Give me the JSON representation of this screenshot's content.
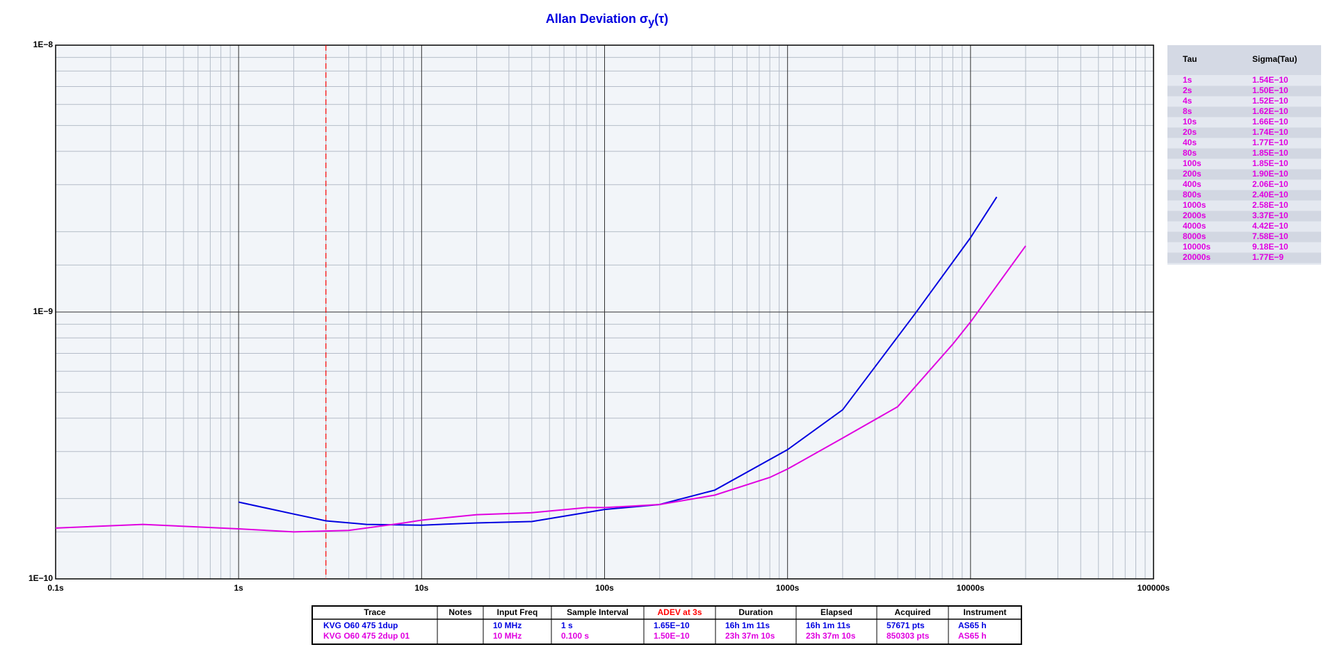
{
  "chart_data": {
    "type": "line",
    "title": "Allan Deviation σ",
    "title_sub": "y",
    "title_end": "(τ)",
    "log_x": true,
    "log_y": true,
    "grid": true,
    "xlim": [
      0.1,
      100000
    ],
    "ylim": [
      1e-10,
      1e-08
    ],
    "xticks": [
      {
        "value": 0.1,
        "label": "0.1s"
      },
      {
        "value": 1,
        "label": "1s"
      },
      {
        "value": 10,
        "label": "10s"
      },
      {
        "value": 100,
        "label": "100s"
      },
      {
        "value": 1000,
        "label": "1000s"
      },
      {
        "value": 10000,
        "label": "10000s"
      },
      {
        "value": 100000,
        "label": "100000s"
      }
    ],
    "yticks": [
      {
        "value": 1e-10,
        "label": "1E−10"
      },
      {
        "value": 1e-09,
        "label": "1E−9"
      },
      {
        "value": 1e-08,
        "label": "1E−8"
      }
    ],
    "marker_x": 3,
    "marker_color": "#ff0000",
    "series": [
      {
        "name": "KVG O60 475 1dup",
        "color": "#0000e0",
        "x": [
          1,
          2,
          3,
          5,
          10,
          20,
          40,
          100,
          200,
          400,
          1000,
          2000,
          5000,
          10000,
          13900
        ],
        "values": [
          1.94e-10,
          1.75e-10,
          1.65e-10,
          1.6e-10,
          1.59e-10,
          1.62e-10,
          1.64e-10,
          1.82e-10,
          1.9e-10,
          2.15e-10,
          3.05e-10,
          4.3e-10,
          9.9e-10,
          1.9e-09,
          2.7e-09
        ]
      },
      {
        "name": "KVG O60 475 2dup 01",
        "color": "#e000e0",
        "x": [
          0.1,
          0.3,
          1,
          2,
          4,
          8,
          10,
          20,
          40,
          80,
          100,
          200,
          400,
          800,
          1000,
          2000,
          4000,
          8000,
          10000,
          20000
        ],
        "values": [
          1.55e-10,
          1.6e-10,
          1.54e-10,
          1.5e-10,
          1.52e-10,
          1.62e-10,
          1.66e-10,
          1.74e-10,
          1.77e-10,
          1.85e-10,
          1.85e-10,
          1.9e-10,
          2.06e-10,
          2.4e-10,
          2.58e-10,
          3.37e-10,
          4.42e-10,
          7.58e-10,
          9.18e-10,
          1.77e-09
        ]
      }
    ]
  },
  "tau_table": {
    "headers": [
      "Tau",
      "Sigma(Tau)"
    ],
    "rows": [
      [
        "1s",
        "1.54E−10"
      ],
      [
        "2s",
        "1.50E−10"
      ],
      [
        "4s",
        "1.52E−10"
      ],
      [
        "8s",
        "1.62E−10"
      ],
      [
        "10s",
        "1.66E−10"
      ],
      [
        "20s",
        "1.74E−10"
      ],
      [
        "40s",
        "1.77E−10"
      ],
      [
        "80s",
        "1.85E−10"
      ],
      [
        "100s",
        "1.85E−10"
      ],
      [
        "200s",
        "1.90E−10"
      ],
      [
        "400s",
        "2.06E−10"
      ],
      [
        "800s",
        "2.40E−10"
      ],
      [
        "1000s",
        "2.58E−10"
      ],
      [
        "2000s",
        "3.37E−10"
      ],
      [
        "4000s",
        "4.42E−10"
      ],
      [
        "8000s",
        "7.58E−10"
      ],
      [
        "10000s",
        "9.18E−10"
      ],
      [
        "20000s",
        "1.77E−9"
      ]
    ]
  },
  "trace_table": {
    "headers": [
      "Trace",
      "Notes",
      "Input Freq",
      "Sample Interval",
      "ADEV at 3s",
      "Duration",
      "Elapsed",
      "Acquired",
      "Instrument"
    ],
    "rows": [
      [
        "10 MHz",
        "1 s",
        "1.65E−10",
        "16h 1m 11s",
        "16h 1m 11s",
        "57671 pts",
        "AS65 h"
      ],
      [
        "10 MHz",
        "0.100 s",
        "1.50E−10",
        "23h 37m 10s",
        "23h 37m 10s",
        "850303 pts",
        "AS65 h"
      ]
    ]
  }
}
